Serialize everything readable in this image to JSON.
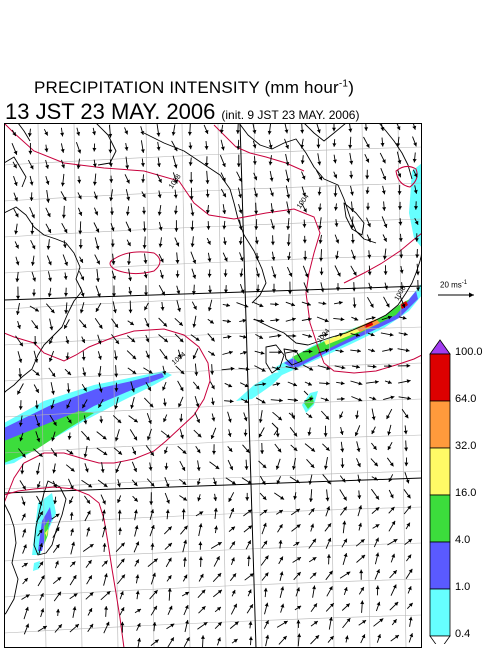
{
  "title": {
    "main": "PRECIPITATION INTENSITY (mm hour",
    "exponent": "-1",
    "close": ")",
    "valid_time": "13 JST 23 MAY. 2006",
    "init": "(init. 9 JST 23 MAY. 2006)"
  },
  "vector_scale": {
    "label": "20 ms",
    "exponent": "-1"
  },
  "isobars": [
    {
      "label": "1008"
    },
    {
      "label": "1004"
    },
    {
      "label": "1004"
    },
    {
      "label": "1008"
    },
    {
      "label": "1004"
    }
  ],
  "legend": {
    "levels": [
      "100.0",
      "64.0",
      "32.0",
      "16.0",
      "4.0",
      "1.0",
      "0.4"
    ],
    "colors": [
      "#dd0000",
      "#ff9a3c",
      "#fffa66",
      "#3cdd3c",
      "#5a5aff",
      "#66ffff",
      "#ffffff"
    ],
    "over_color": "#a23cf0"
  },
  "colors": {
    "coast": "#000000",
    "isobar": "#c8003c",
    "grid": "#b4b4b4",
    "frame": "#000000"
  }
}
